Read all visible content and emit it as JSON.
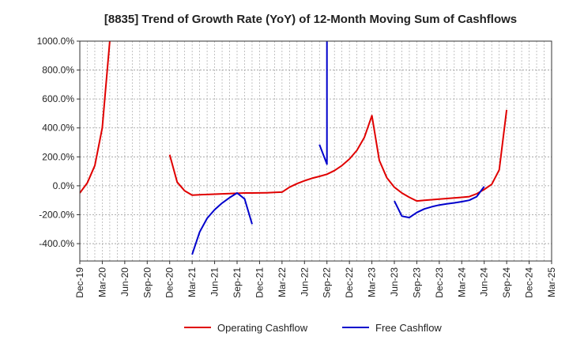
{
  "chart_data": {
    "type": "line",
    "title": "[8835]  Trend of Growth Rate (YoY) of 12-Month Moving Sum of Cashflows",
    "xlabel": "",
    "ylabel": "",
    "ylim": [
      -520,
      1000
    ],
    "y_ticks": [
      1000,
      800,
      600,
      400,
      200,
      0,
      -200,
      -400
    ],
    "y_tick_labels": [
      "1000.0%",
      "800.0%",
      "600.0%",
      "400.0%",
      "200.0%",
      "0.0%",
      "-200.0%",
      "-400.0%"
    ],
    "x_start": "Dec-19",
    "x_labels": [
      "Dec-19",
      "Mar-20",
      "Jun-20",
      "Sep-20",
      "Dec-20",
      "Mar-21",
      "Jun-21",
      "Sep-21",
      "Dec-21",
      "Mar-22",
      "Jun-22",
      "Sep-22",
      "Dec-22",
      "Mar-23",
      "Jun-23",
      "Sep-23",
      "Dec-23",
      "Mar-24",
      "Jun-24",
      "Sep-24",
      "Dec-24",
      "Mar-25"
    ],
    "grid": true,
    "legend_position": "bottom",
    "series": [
      {
        "name": "Operating Cashflow",
        "color": "#e00000",
        "segments": [
          [
            [
              "Dec-19",
              -50
            ],
            [
              "Jan-20",
              20
            ],
            [
              "Feb-20",
              140
            ],
            [
              "Mar-20",
              400
            ],
            [
              "Apr-20",
              1000
            ]
          ],
          [
            [
              "Dec-20",
              215
            ],
            [
              "Jan-21",
              25
            ],
            [
              "Feb-21",
              -35
            ],
            [
              "Mar-21",
              -65
            ],
            [
              "Apr-21",
              -62
            ],
            [
              "May-21",
              -60
            ],
            [
              "Jun-21",
              -58
            ],
            [
              "Jul-21",
              -56
            ],
            [
              "Aug-21",
              -54
            ],
            [
              "Sep-21",
              -52
            ],
            [
              "Oct-21",
              -50
            ],
            [
              "Nov-21",
              -50
            ],
            [
              "Dec-21",
              -49
            ],
            [
              "Jan-22",
              -48
            ],
            [
              "Feb-22",
              -46
            ],
            [
              "Mar-22",
              -44
            ],
            [
              "Apr-22",
              -10
            ],
            [
              "May-22",
              15
            ],
            [
              "Jun-22",
              35
            ],
            [
              "Jul-22",
              52
            ],
            [
              "Aug-22",
              65
            ],
            [
              "Sep-22",
              80
            ],
            [
              "Oct-22",
              105
            ],
            [
              "Nov-22",
              140
            ],
            [
              "Dec-22",
              185
            ],
            [
              "Jan-23",
              245
            ],
            [
              "Feb-23",
              335
            ],
            [
              "Mar-23",
              485
            ],
            [
              "Apr-23",
              175
            ],
            [
              "May-23",
              55
            ],
            [
              "Jun-23",
              -10
            ],
            [
              "Jul-23",
              -50
            ],
            [
              "Aug-23",
              -80
            ],
            [
              "Sep-23",
              -105
            ],
            [
              "Oct-23",
              -100
            ],
            [
              "Nov-23",
              -96
            ],
            [
              "Dec-23",
              -92
            ],
            [
              "Jan-24",
              -88
            ],
            [
              "Feb-24",
              -84
            ],
            [
              "Mar-24",
              -80
            ],
            [
              "Apr-24",
              -75
            ],
            [
              "May-24",
              -55
            ],
            [
              "Jun-24",
              -25
            ],
            [
              "Jul-24",
              10
            ],
            [
              "Aug-24",
              110
            ],
            [
              "Sep-24",
              525
            ]
          ]
        ]
      },
      {
        "name": "Free Cashflow",
        "color": "#0000cc",
        "segments": [
          [
            [
              "Mar-21",
              -475
            ],
            [
              "Apr-21",
              -320
            ],
            [
              "May-21",
              -225
            ],
            [
              "Jun-21",
              -165
            ],
            [
              "Jul-21",
              -120
            ],
            [
              "Aug-21",
              -82
            ],
            [
              "Sep-21",
              -50
            ],
            [
              "Oct-21",
              -90
            ],
            [
              "Nov-21",
              -265
            ]
          ],
          [
            [
              "Aug-22",
              285
            ],
            [
              "Sep-22",
              150
            ],
            [
              "Sep-22",
              1000
            ]
          ],
          [
            [
              "Jun-23",
              -105
            ],
            [
              "Jul-23",
              -210
            ],
            [
              "Aug-23",
              -220
            ],
            [
              "Sep-23",
              -185
            ],
            [
              "Oct-23",
              -160
            ],
            [
              "Nov-23",
              -145
            ],
            [
              "Dec-23",
              -133
            ],
            [
              "Jan-24",
              -125
            ],
            [
              "Feb-24",
              -118
            ],
            [
              "Mar-24",
              -110
            ],
            [
              "Apr-24",
              -100
            ],
            [
              "May-24",
              -75
            ],
            [
              "Jun-24",
              -5
            ]
          ]
        ]
      }
    ]
  }
}
